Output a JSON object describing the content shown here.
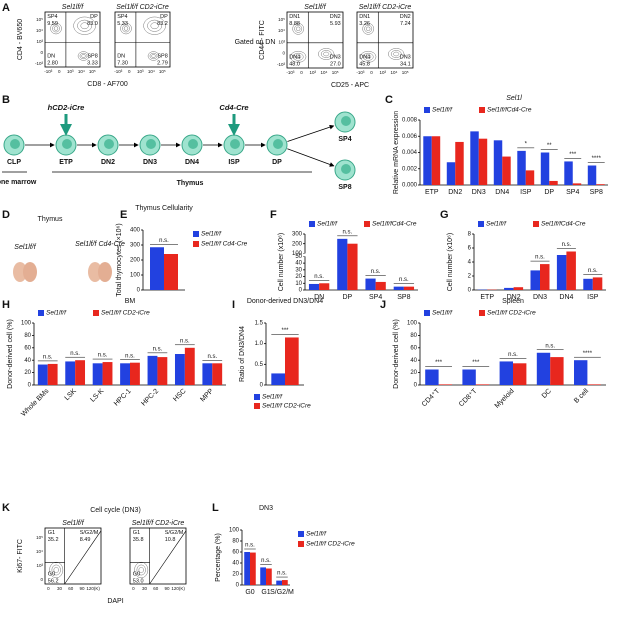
{
  "panel_labels": [
    "A",
    "B",
    "C",
    "D",
    "E",
    "F",
    "G",
    "H",
    "I",
    "J",
    "K",
    "L"
  ],
  "flow_groups": [
    {
      "xlabel": "CD8 - AF700",
      "ylabel": "CD4 - BV650",
      "xticks": [
        "-10³",
        "0",
        "10³",
        "10⁴",
        "10⁵"
      ],
      "yticks": [
        "-10³",
        "0",
        "10³",
        "10⁴",
        "10⁵"
      ],
      "plots": [
        {
          "title": "Sel1lf/f",
          "gates": [
            {
              "name": "SP4",
              "value": "9.59"
            },
            {
              "name": "DP",
              "value": "83.0"
            },
            {
              "name": "DN",
              "value": "2.80"
            },
            {
              "name": "SP8",
              "value": "3.33"
            }
          ]
        },
        {
          "title": "Sel1lf/f CD2-iCre",
          "gates": [
            {
              "name": "SP4",
              "value": "5.33"
            },
            {
              "name": "DP",
              "value": "83.2"
            },
            {
              "name": "DN",
              "value": "7.30"
            },
            {
              "name": "SP8",
              "value": "2.79"
            }
          ]
        }
      ]
    },
    {
      "note": "Gated on DN",
      "xlabel": "CD25 - APC",
      "ylabel": "CD44 - FITC",
      "xticks": [
        "-10³",
        "0",
        "10³",
        "10⁴",
        "10⁵"
      ],
      "yticks": [
        "-10³",
        "0",
        "10³",
        "10⁴",
        "10⁵"
      ],
      "plots": [
        {
          "title": "Sel1lf/f",
          "gates": [
            {
              "name": "DN1",
              "value": "8.88"
            },
            {
              "name": "DN2",
              "value": "5.93"
            },
            {
              "name": "DN4",
              "value": "48.0"
            },
            {
              "name": "DN3",
              "value": "27.0"
            }
          ]
        },
        {
          "title": "Sel1lf/f CD2-iCre",
          "gates": [
            {
              "name": "DN1",
              "value": "3.26"
            },
            {
              "name": "DN2",
              "value": "7.24"
            },
            {
              "name": "DN4",
              "value": "45.8"
            },
            {
              "name": "DN3",
              "value": "34.1"
            }
          ]
        }
      ]
    },
    {
      "title": "Cell cycle (DN3)",
      "xlabel": "DAPI",
      "ylabel": "Ki67- FITC",
      "xticks": [
        "0",
        "30",
        "60",
        "90",
        "120(K)"
      ],
      "yticks": [
        "0",
        "10³",
        "10⁴",
        "10⁵"
      ],
      "plots": [
        {
          "title": "Sel1lf/f",
          "gates": [
            {
              "name": "G1",
              "value": "35.2"
            },
            {
              "name": "S/G2/M",
              "value": "8.49"
            },
            {
              "name": "G0",
              "value": "56.2"
            }
          ]
        },
        {
          "title": "Sel1lf/f CD2-iCre",
          "gates": [
            {
              "name": "G1",
              "value": "35.8"
            },
            {
              "name": "S/G2/M",
              "value": "10.8"
            },
            {
              "name": "G0",
              "value": "53.0"
            }
          ]
        }
      ]
    }
  ],
  "diagram": {
    "nodes": [
      "CLP",
      "ETP",
      "DN2",
      "DN3",
      "DN4",
      "ISP",
      "DP",
      "SP4",
      "SP8"
    ],
    "drivers": [
      "hCD2-iCre",
      "Cd4-Cre"
    ],
    "bone_marrow": "Bone marrow",
    "thymus": "Thymus"
  },
  "thymus_photo": {
    "title": "Thymus",
    "labels": [
      "Sel1lf/f",
      "Sel1lf/f Cd4-Cre"
    ]
  },
  "chart_data": [
    {
      "type": "bar",
      "title": "Sel1l",
      "ylabel": "Relative mRNA expression",
      "categories": [
        "ETP",
        "DN2",
        "DN3",
        "DN4",
        "ISP",
        "DP",
        "SP4",
        "SP8"
      ],
      "series": [
        {
          "name": "Sel1lf/f",
          "color": "#2241e0",
          "values": [
            0.006,
            0.0028,
            0.0066,
            0.0055,
            0.0042,
            0.004,
            0.0029,
            0.0024
          ]
        },
        {
          "name": "Sel1lf/fCd4-Cre",
          "color": "#e8271e",
          "values": [
            0.006,
            0.0053,
            0.0057,
            0.0035,
            0.0018,
            0.0005,
            0.0002,
            0.0001
          ]
        }
      ],
      "ylim": [
        0,
        0.008
      ],
      "yticks": [
        {
          "value": 0,
          "label": "0.000"
        },
        0.002,
        0.004,
        0.006,
        0.008
      ],
      "annotations": [
        {
          "text": "*",
          "at": "ISP"
        },
        {
          "text": "**",
          "at": "DP"
        },
        {
          "text": "***",
          "at": "SP4"
        },
        {
          "text": "****",
          "at": "SP8"
        }
      ],
      "legend": "top"
    },
    {
      "type": "bar",
      "title": "Thymus Cellularity",
      "ylabel": "Total thymocytes (×10⁶)",
      "categories": [
        null
      ],
      "series": [
        {
          "name": "Sel1lf/f",
          "color": "#2241e0",
          "values": [
            285
          ]
        },
        {
          "name": "Sel1lf/f Cd4-Cre",
          "color": "#e8271e",
          "values": [
            240
          ]
        }
      ],
      "ylim": [
        0,
        400
      ],
      "yticks": [
        0,
        100,
        200,
        300,
        400
      ],
      "annotations": [
        {
          "text": "n.s.",
          "at": null
        }
      ],
      "legend": "right"
    },
    {
      "type": "bar",
      "ylabel": "Cell number (x10⁶)",
      "categories": [
        "DN",
        "DP",
        "SP4",
        "SP8"
      ],
      "series": [
        {
          "name": "Sel1lf/f",
          "color": "#2241e0",
          "values": [
            9,
            250,
            17,
            5
          ]
        },
        {
          "name": "Sel1lf/fCd4-Cre",
          "color": "#e8271e",
          "values": [
            10,
            200,
            12,
            5
          ]
        }
      ],
      "ylim": [
        0,
        300
      ],
      "ybreak": [
        50,
        100
      ],
      "yticks": [
        0,
        10,
        20,
        30,
        40,
        50,
        100,
        200,
        300
      ],
      "annotations": [
        {
          "text": "n.s.",
          "at": "DN"
        },
        {
          "text": "n.s.",
          "at": "DP"
        },
        {
          "text": "n.s.",
          "at": "SP4"
        },
        {
          "text": "n.s.",
          "at": "SP8"
        }
      ],
      "legend": "top"
    },
    {
      "type": "bar",
      "ylabel": "Cell number (x10⁶)",
      "categories": [
        "ETP",
        "DN2",
        "DN3",
        "DN4",
        "ISP"
      ],
      "series": [
        {
          "name": "Sel1lf/f",
          "color": "#2241e0",
          "values": [
            0.05,
            0.3,
            2.8,
            5.0,
            1.6
          ]
        },
        {
          "name": "Sel1lf/fCd4-Cre",
          "color": "#e8271e",
          "values": [
            0.05,
            0.4,
            3.7,
            5.5,
            1.8
          ]
        }
      ],
      "ylim": [
        0,
        8
      ],
      "yticks": [
        0,
        2,
        4,
        6,
        8
      ],
      "annotations": [
        {
          "text": "n.s.",
          "at": "DN3"
        },
        {
          "text": "n.s.",
          "at": "DN4"
        },
        {
          "text": "n.s.",
          "at": "ISP"
        }
      ],
      "legend": "top"
    },
    {
      "type": "bar",
      "title": "BM",
      "ylabel": "Donor-derived cell (%)",
      "categories": [
        "Whole BMs",
        "LSK",
        "LS-K",
        "HPC-1",
        "HPC-2",
        "HSC",
        "MPP"
      ],
      "series": [
        {
          "name": "Sel1lf/f",
          "color": "#2241e0",
          "values": [
            33,
            38,
            35,
            35,
            47,
            50,
            35
          ]
        },
        {
          "name": "Sel1lf/f CD2-iCre",
          "color": "#e8271e",
          "values": [
            34,
            40,
            37,
            36,
            45,
            60,
            35
          ]
        }
      ],
      "ylim": [
        0,
        100
      ],
      "yticks": [
        0,
        20,
        40,
        60,
        80,
        100
      ],
      "xlabel_rotation": 45,
      "annotations": [
        {
          "text": "n.s.",
          "at": "Whole BMs"
        },
        {
          "text": "n.s.",
          "at": "LSK"
        },
        {
          "text": "n.s.",
          "at": "LS-K"
        },
        {
          "text": "n.s.",
          "at": "HPC-1"
        },
        {
          "text": "n.s.",
          "at": "HPC-2"
        },
        {
          "text": "n.s.",
          "at": "HSC"
        },
        {
          "text": "n.s.",
          "at": "MPP"
        }
      ],
      "legend": "top"
    },
    {
      "type": "bar",
      "title": "Donor-derived DN3/DN4",
      "ylabel": "Ratio of DN3/DN4",
      "categories": [
        null
      ],
      "series": [
        {
          "name": "Sel1lf/f",
          "color": "#2241e0",
          "values": [
            0.28
          ]
        },
        {
          "name": "Sel1lf/f CD2-iCre",
          "color": "#e8271e",
          "values": [
            1.15
          ]
        }
      ],
      "ylim": [
        0,
        1.5
      ],
      "yticks": [
        0,
        0.5,
        {
          "value": 1,
          "label": "1.0"
        },
        1.5
      ],
      "annotations": [
        {
          "text": "***",
          "at": null
        }
      ],
      "legend": "bottom"
    },
    {
      "type": "bar",
      "title": "Spleen",
      "ylabel": "Donor-derived cell (%)",
      "categories": [
        "CD4⁺T",
        "CD8⁺T",
        "Myeloid",
        "DC",
        "B cell"
      ],
      "series": [
        {
          "name": "Sel1lf/f",
          "color": "#2241e0",
          "values": [
            25,
            25,
            38,
            52,
            40
          ]
        },
        {
          "name": "Sel1lf/f CD2-iCre",
          "color": "#e8271e",
          "values": [
            1,
            1,
            35,
            45,
            1
          ]
        }
      ],
      "ylim": [
        0,
        100
      ],
      "yticks": [
        0,
        20,
        40,
        60,
        80,
        100
      ],
      "xlabel_rotation": 45,
      "annotations": [
        {
          "text": "***",
          "at": "CD4⁺T"
        },
        {
          "text": "***",
          "at": "CD8⁺T"
        },
        {
          "text": "n.s.",
          "at": "Myeloid"
        },
        {
          "text": "n.s.",
          "at": "DC"
        },
        {
          "text": "****",
          "at": "B cell"
        }
      ],
      "legend": "top"
    },
    {
      "type": "bar",
      "title": "DN3",
      "ylabel": "Percentage (%)",
      "categories": [
        "G0",
        "G1",
        "S/G2/M"
      ],
      "series": [
        {
          "name": "Sel1lf/f",
          "color": "#2241e0",
          "values": [
            60,
            32,
            8
          ]
        },
        {
          "name": "Sel1lf/f CD2-iCre",
          "color": "#e8271e",
          "values": [
            59,
            30,
            9
          ]
        }
      ],
      "ylim": [
        0,
        100
      ],
      "yticks": [
        0,
        20,
        40,
        60,
        80,
        100
      ],
      "annotations": [
        {
          "text": "n.s.",
          "at": "G0"
        },
        {
          "text": "n.s.",
          "at": "G1"
        },
        {
          "text": "n.s.",
          "at": "S/G2/M"
        }
      ],
      "legend": "right"
    }
  ]
}
